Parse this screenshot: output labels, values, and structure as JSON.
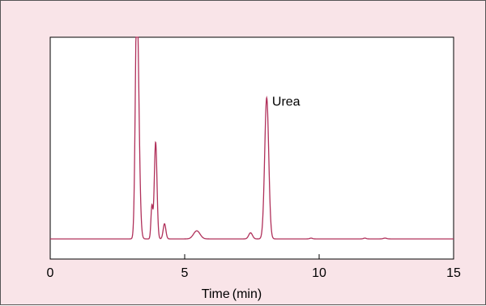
{
  "chart_data": {
    "type": "line",
    "title": "",
    "xlabel": "Time (min)",
    "xlabel_parts": [
      "Time",
      "(min)"
    ],
    "ylabel": "",
    "xlim": [
      0,
      15
    ],
    "x_ticks": [
      0,
      5,
      10,
      15
    ],
    "x_tick_labels": [
      "0",
      "5",
      "10",
      "15"
    ],
    "y_ticks_shown": false,
    "grid": false,
    "legend": "none",
    "line_color": "#b0305a",
    "plot_background": "#ffffff",
    "panel_background": "#f9e4e8",
    "baseline": 0,
    "ylim": [
      -0.1,
      1.0
    ],
    "series": [
      {
        "peaks": [
          {
            "t": 3.22,
            "h": 1.22,
            "w": 0.055,
            "wr": 0.075
          },
          {
            "t": 3.78,
            "h": 0.16,
            "w": 0.035
          },
          {
            "t": 3.92,
            "h": 0.48,
            "w": 0.05
          },
          {
            "t": 4.25,
            "h": 0.075,
            "w": 0.05
          },
          {
            "t": 5.45,
            "h": 0.04,
            "w": 0.12
          },
          {
            "t": 7.45,
            "h": 0.03,
            "w": 0.07
          },
          {
            "t": 8.05,
            "h": 0.7,
            "w": 0.075
          },
          {
            "t": 9.7,
            "h": 0.004,
            "w": 0.05
          },
          {
            "t": 11.7,
            "h": 0.004,
            "w": 0.05
          },
          {
            "t": 12.45,
            "h": 0.004,
            "w": 0.06
          }
        ]
      }
    ],
    "annotations": [
      {
        "text": "Urea",
        "x": 8.25,
        "y": 0.66
      }
    ]
  }
}
